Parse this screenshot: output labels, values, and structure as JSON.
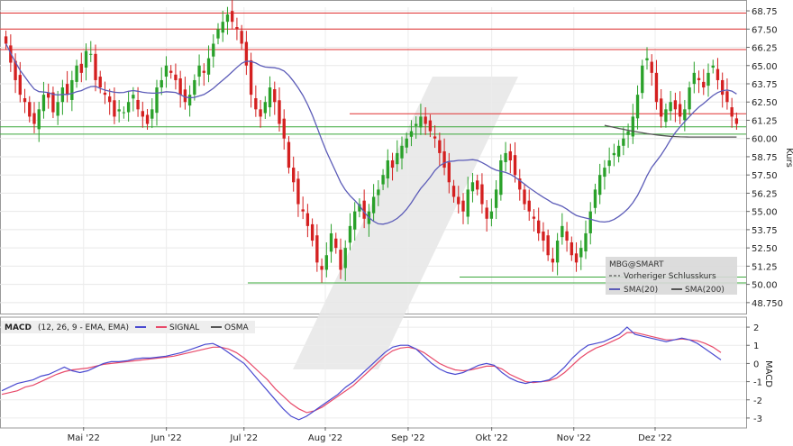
{
  "chart_data": [
    {
      "type": "candlestick",
      "symbol": "MBG@SMART",
      "ylabel": "Kurs",
      "ylim": [
        48.0,
        69.0
      ],
      "y_ticks": [
        "68.75",
        "67.50",
        "66.25",
        "65.00",
        "63.75",
        "62.50",
        "61.25",
        "60.00",
        "58.75",
        "57.50",
        "56.25",
        "55.00",
        "53.75",
        "52.50",
        "51.25",
        "50.00",
        "48.750"
      ],
      "x_ticks": [
        "Mai '22",
        "Jun '22",
        "Jul '22",
        "Aug '22",
        "Sep '22",
        "Okt '22",
        "Nov '22",
        "Dez '22"
      ],
      "legend": {
        "title": "MBG@SMART",
        "prev_close_label": "Vorheriger Schlusskurs",
        "sma20_label": "SMA(20)",
        "sma200_label": "SMA(200)"
      },
      "colors": {
        "up": "#2aa12a",
        "down": "#d42020",
        "sma20": "#5c5cb8",
        "sma200": "#555555",
        "resistance": "#e03030",
        "support": "#3aa83a"
      },
      "resistance_levels": [
        68.6,
        67.5,
        66.1,
        61.7
      ],
      "support_levels": [
        60.8,
        60.3,
        50.5,
        50.1
      ],
      "candles_close": [
        66.5,
        65.2,
        64.0,
        63.0,
        62.5,
        61.5,
        61.0,
        62.0,
        63.0,
        62.8,
        61.8,
        62.5,
        63.5,
        63.0,
        64.0,
        65.0,
        64.5,
        66.0,
        65.8,
        64.0,
        63.5,
        63.0,
        62.5,
        61.5,
        62.0,
        61.8,
        62.5,
        63.0,
        62.0,
        61.5,
        61.0,
        62.0,
        63.5,
        64.0,
        65.0,
        64.5,
        64.0,
        63.0,
        62.5,
        63.0,
        64.0,
        65.0,
        64.5,
        65.5,
        66.5,
        67.5,
        68.0,
        68.5,
        68.0,
        67.5,
        66.5,
        65.0,
        63.0,
        62.0,
        61.5,
        62.5,
        63.5,
        62.5,
        61.0,
        60.0,
        58.0,
        57.0,
        55.5,
        55.0,
        54.0,
        53.0,
        51.5,
        51.0,
        52.0,
        53.5,
        52.5,
        51.0,
        52.5,
        54.0,
        55.0,
        55.5,
        54.5,
        55.0,
        56.0,
        56.5,
        57.5,
        58.5,
        58.0,
        59.0,
        59.5,
        60.0,
        60.5,
        61.0,
        61.5,
        61.0,
        60.5,
        60.0,
        59.0,
        58.0,
        57.0,
        56.0,
        55.5,
        55.0,
        56.5,
        57.0,
        56.5,
        55.5,
        54.5,
        55.0,
        56.5,
        58.5,
        59.0,
        58.5,
        57.5,
        56.5,
        55.5,
        55.0,
        54.5,
        53.5,
        53.0,
        52.0,
        51.5,
        53.0,
        54.0,
        53.0,
        52.0,
        51.5,
        52.5,
        53.5,
        55.0,
        56.5,
        57.5,
        58.0,
        58.5,
        59.0,
        59.5,
        60.0,
        60.5,
        61.5,
        63.0,
        65.0,
        65.5,
        64.5,
        62.5,
        61.5,
        62.0,
        62.5,
        62.0,
        61.5,
        62.0,
        63.5,
        64.5,
        64.0,
        63.5,
        64.5,
        65.0,
        64.0,
        63.0,
        62.5,
        61.5,
        61.0
      ],
      "macd": {
        "header": "MACD",
        "params": "(12, 26, 9 - EMA, EMA)",
        "signal_label": "SIGNAL",
        "osma_label": "OSMA",
        "ylabel": "MACD",
        "ylim": [
          -3.4,
          2.4
        ],
        "y_ticks": [
          "2",
          "1",
          "0",
          "-1",
          "-2",
          "-3"
        ],
        "macd_series": [
          -1.5,
          -1.3,
          -1.1,
          -1.0,
          -0.9,
          -0.7,
          -0.6,
          -0.4,
          -0.2,
          -0.4,
          -0.5,
          -0.4,
          -0.2,
          0.0,
          0.1,
          0.1,
          0.15,
          0.25,
          0.3,
          0.3,
          0.35,
          0.4,
          0.5,
          0.6,
          0.75,
          0.9,
          1.05,
          1.1,
          0.9,
          0.6,
          0.3,
          0.0,
          -0.5,
          -1.0,
          -1.5,
          -2.0,
          -2.5,
          -2.9,
          -3.1,
          -2.9,
          -2.6,
          -2.3,
          -2.0,
          -1.7,
          -1.3,
          -1.0,
          -0.6,
          -0.2,
          0.2,
          0.6,
          0.9,
          1.0,
          1.0,
          0.8,
          0.4,
          0.0,
          -0.3,
          -0.5,
          -0.6,
          -0.5,
          -0.3,
          -0.1,
          0.0,
          -0.1,
          -0.5,
          -0.8,
          -1.0,
          -1.1,
          -1.0,
          -1.0,
          -0.9,
          -0.6,
          -0.2,
          0.3,
          0.7,
          1.0,
          1.1,
          1.2,
          1.4,
          1.6,
          2.0,
          1.6,
          1.5,
          1.4,
          1.3,
          1.2,
          1.3,
          1.4,
          1.3,
          1.1,
          0.8,
          0.5,
          0.2
        ],
        "signal_series": [
          -1.7,
          -1.6,
          -1.5,
          -1.3,
          -1.2,
          -1.0,
          -0.8,
          -0.6,
          -0.45,
          -0.35,
          -0.3,
          -0.25,
          -0.15,
          -0.05,
          0.0,
          0.05,
          0.1,
          0.15,
          0.2,
          0.25,
          0.3,
          0.35,
          0.4,
          0.5,
          0.6,
          0.7,
          0.8,
          0.9,
          0.9,
          0.8,
          0.6,
          0.3,
          -0.1,
          -0.5,
          -0.9,
          -1.4,
          -1.8,
          -2.2,
          -2.5,
          -2.7,
          -2.6,
          -2.4,
          -2.1,
          -1.8,
          -1.5,
          -1.2,
          -0.8,
          -0.4,
          0.0,
          0.4,
          0.7,
          0.85,
          0.9,
          0.8,
          0.6,
          0.3,
          0.0,
          -0.2,
          -0.35,
          -0.4,
          -0.35,
          -0.25,
          -0.15,
          -0.15,
          -0.3,
          -0.6,
          -0.8,
          -1.0,
          -1.05,
          -1.0,
          -0.95,
          -0.8,
          -0.5,
          -0.1,
          0.3,
          0.6,
          0.85,
          1.0,
          1.2,
          1.4,
          1.7,
          1.7,
          1.6,
          1.5,
          1.4,
          1.3,
          1.3,
          1.35,
          1.3,
          1.25,
          1.1,
          0.9,
          0.6
        ]
      }
    }
  ]
}
